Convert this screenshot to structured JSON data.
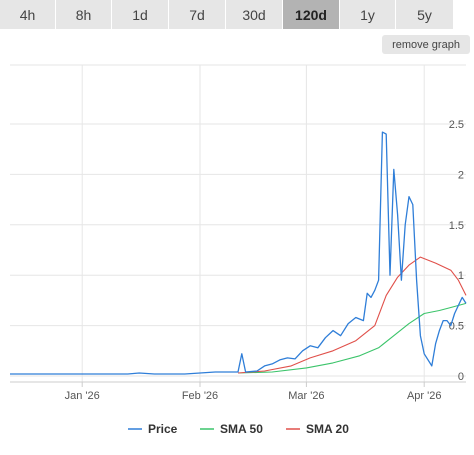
{
  "tabs": [
    {
      "label": "4h",
      "active": false
    },
    {
      "label": "8h",
      "active": false
    },
    {
      "label": "1d",
      "active": false
    },
    {
      "label": "7d",
      "active": false
    },
    {
      "label": "30d",
      "active": false
    },
    {
      "label": "120d",
      "active": true
    },
    {
      "label": "1y",
      "active": false
    },
    {
      "label": "5y",
      "active": false
    }
  ],
  "remove_graph_label": "remove graph",
  "colors": {
    "price": "#2f7ed8",
    "sma50": "#3bc46a",
    "sma20": "#e0504a",
    "grid": "#e6e6e6"
  },
  "chart_data": {
    "type": "line",
    "x_ticks": [
      "Jan '26",
      "Feb '26",
      "Mar '26",
      "Apr '26"
    ],
    "y_ticks": [
      "0",
      "0.5",
      "1",
      "1.5",
      "2",
      "2.5"
    ],
    "ylim": [
      0,
      2.5
    ],
    "x_domain": [
      "2025-12-13",
      "2026-04-12"
    ],
    "grid": true,
    "legend_position": "bottom",
    "series": [
      {
        "name": "Price",
        "color": "#2f7ed8",
        "points": [
          [
            "2025-12-13",
            0.02
          ],
          [
            "2025-12-16",
            0.02
          ],
          [
            "2025-12-19",
            0.02
          ],
          [
            "2025-12-22",
            0.02
          ],
          [
            "2025-12-25",
            0.02
          ],
          [
            "2025-12-28",
            0.02
          ],
          [
            "2026-01-01",
            0.02
          ],
          [
            "2026-01-05",
            0.02
          ],
          [
            "2026-01-09",
            0.02
          ],
          [
            "2026-01-13",
            0.02
          ],
          [
            "2026-01-16",
            0.03
          ],
          [
            "2026-01-20",
            0.02
          ],
          [
            "2026-01-24",
            0.02
          ],
          [
            "2026-01-28",
            0.02
          ],
          [
            "2026-02-01",
            0.03
          ],
          [
            "2026-02-05",
            0.04
          ],
          [
            "2026-02-09",
            0.04
          ],
          [
            "2026-02-11",
            0.04
          ],
          [
            "2026-02-12",
            0.22
          ],
          [
            "2026-02-13",
            0.04
          ],
          [
            "2026-02-16",
            0.05
          ],
          [
            "2026-02-18",
            0.1
          ],
          [
            "2026-02-20",
            0.12
          ],
          [
            "2026-02-22",
            0.16
          ],
          [
            "2026-02-24",
            0.18
          ],
          [
            "2026-02-26",
            0.17
          ],
          [
            "2026-02-28",
            0.25
          ],
          [
            "2026-03-02",
            0.3
          ],
          [
            "2026-03-04",
            0.28
          ],
          [
            "2026-03-06",
            0.38
          ],
          [
            "2026-03-08",
            0.45
          ],
          [
            "2026-03-10",
            0.4
          ],
          [
            "2026-03-12",
            0.52
          ],
          [
            "2026-03-14",
            0.58
          ],
          [
            "2026-03-16",
            0.55
          ],
          [
            "2026-03-17",
            0.82
          ],
          [
            "2026-03-18",
            0.78
          ],
          [
            "2026-03-19",
            0.85
          ],
          [
            "2026-03-20",
            0.95
          ],
          [
            "2026-03-21",
            2.42
          ],
          [
            "2026-03-22",
            2.4
          ],
          [
            "2026-03-23",
            1.0
          ],
          [
            "2026-03-24",
            2.05
          ],
          [
            "2026-03-25",
            1.6
          ],
          [
            "2026-03-26",
            0.95
          ],
          [
            "2026-03-27",
            1.5
          ],
          [
            "2026-03-28",
            1.78
          ],
          [
            "2026-03-29",
            1.7
          ],
          [
            "2026-03-30",
            0.95
          ],
          [
            "2026-03-31",
            0.4
          ],
          [
            "2026-04-01",
            0.22
          ],
          [
            "2026-04-03",
            0.1
          ],
          [
            "2026-04-04",
            0.32
          ],
          [
            "2026-04-05",
            0.45
          ],
          [
            "2026-04-06",
            0.55
          ],
          [
            "2026-04-07",
            0.55
          ],
          [
            "2026-04-08",
            0.5
          ],
          [
            "2026-04-09",
            0.62
          ],
          [
            "2026-04-10",
            0.7
          ],
          [
            "2026-04-11",
            0.78
          ],
          [
            "2026-04-12",
            0.72
          ]
        ]
      },
      {
        "name": "SMA 50",
        "color": "#3bc46a",
        "points": [
          [
            "2026-02-11",
            0.03
          ],
          [
            "2026-02-20",
            0.04
          ],
          [
            "2026-03-01",
            0.08
          ],
          [
            "2026-03-08",
            0.13
          ],
          [
            "2026-03-15",
            0.2
          ],
          [
            "2026-03-20",
            0.28
          ],
          [
            "2026-03-24",
            0.4
          ],
          [
            "2026-03-28",
            0.52
          ],
          [
            "2026-04-01",
            0.62
          ],
          [
            "2026-04-05",
            0.65
          ],
          [
            "2026-04-08",
            0.68
          ],
          [
            "2026-04-12",
            0.72
          ]
        ]
      },
      {
        "name": "SMA 20",
        "color": "#e0504a",
        "points": [
          [
            "2026-02-11",
            0.03
          ],
          [
            "2026-02-18",
            0.05
          ],
          [
            "2026-02-25",
            0.1
          ],
          [
            "2026-03-02",
            0.18
          ],
          [
            "2026-03-08",
            0.25
          ],
          [
            "2026-03-14",
            0.35
          ],
          [
            "2026-03-19",
            0.5
          ],
          [
            "2026-03-22",
            0.8
          ],
          [
            "2026-03-25",
            0.98
          ],
          [
            "2026-03-28",
            1.1
          ],
          [
            "2026-03-31",
            1.18
          ],
          [
            "2026-04-04",
            1.12
          ],
          [
            "2026-04-08",
            1.05
          ],
          [
            "2026-04-10",
            0.95
          ],
          [
            "2026-04-12",
            0.8
          ]
        ]
      }
    ],
    "legend": [
      "Price",
      "SMA 50",
      "SMA 20"
    ]
  }
}
